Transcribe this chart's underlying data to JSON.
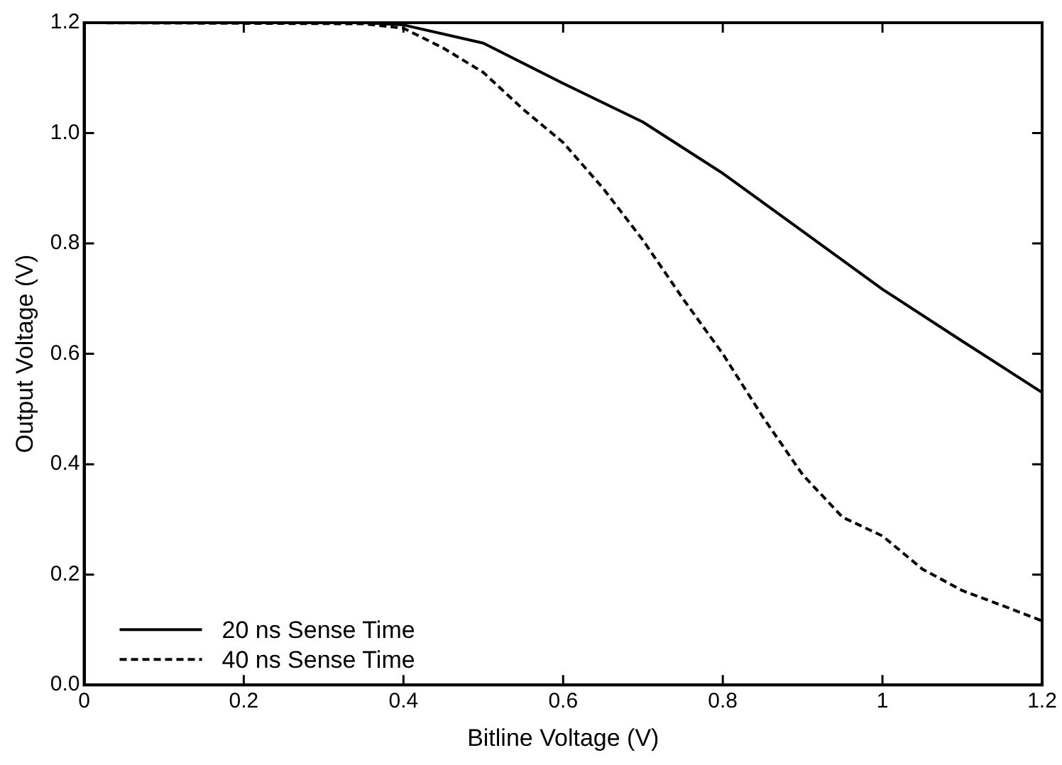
{
  "chart_data": {
    "type": "line",
    "xlabel": "Bitline Voltage (V)",
    "ylabel": "Output Voltage (V)",
    "xlim": [
      0,
      1.2
    ],
    "ylim": [
      0,
      1.2
    ],
    "xticks": [
      0,
      0.2,
      0.4,
      0.6,
      0.8,
      1,
      1.2
    ],
    "yticks": [
      {
        "value": 0,
        "label": "0.0"
      },
      {
        "value": 0.2,
        "label": "0.2"
      },
      {
        "value": 0.4,
        "label": "0.4"
      },
      {
        "value": 0.6,
        "label": "0.6"
      },
      {
        "value": 0.8,
        "label": "0.8"
      },
      {
        "value": 1,
        "label": "1.0"
      },
      {
        "value": 1.2,
        "label": "1.2"
      }
    ],
    "grid": false,
    "legend": "bottom left",
    "marker": "none",
    "series": [
      {
        "name": "20 ns Sense Time",
        "color": "#000000",
        "line_style": "solid",
        "x": [
          0,
          0.35,
          0.4,
          0.5,
          0.6,
          0.7,
          0.8,
          0.9,
          1.0,
          1.1,
          1.2
        ],
        "values": [
          1.2,
          1.2,
          1.196,
          1.163,
          1.09,
          1.02,
          0.927,
          0.822,
          0.717,
          0.623,
          0.53
        ]
      },
      {
        "name": "40 ns Sense Time",
        "color": "#000000",
        "line_style": "dashed",
        "x": [
          0,
          0.35,
          0.4,
          0.45,
          0.5,
          0.55,
          0.6,
          0.65,
          0.7,
          0.75,
          0.8,
          0.85,
          0.9,
          0.95,
          1.0,
          1.05,
          1.1,
          1.15,
          1.2
        ],
        "values": [
          1.2,
          1.198,
          1.19,
          1.154,
          1.11,
          1.043,
          0.983,
          0.9,
          0.806,
          0.7,
          0.6,
          0.486,
          0.381,
          0.304,
          0.27,
          0.21,
          0.171,
          0.144,
          0.116
        ]
      }
    ]
  }
}
